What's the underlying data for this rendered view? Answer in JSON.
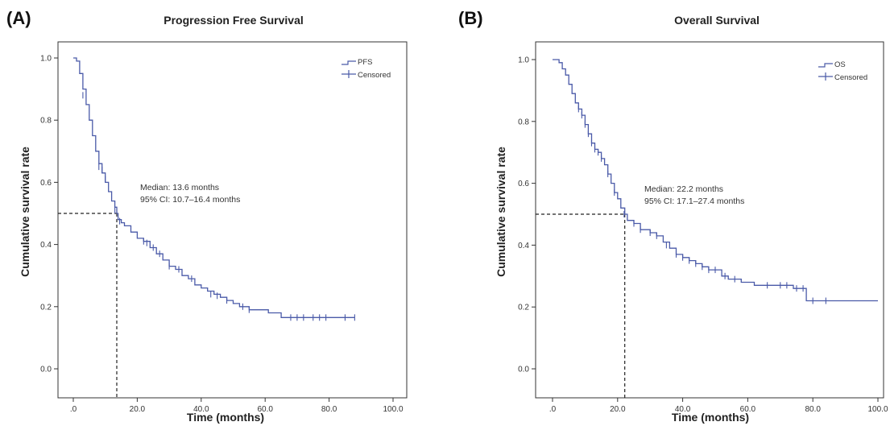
{
  "chart_data": [
    {
      "type": "line",
      "panel_label": "(A)",
      "title": "Progression Free Survival",
      "xlabel": "Time (months)",
      "ylabel": "Cumulative survival rate",
      "xlim": [
        0,
        100
      ],
      "ylim": [
        0,
        1
      ],
      "x_ticks": [
        ".0",
        "20.0",
        "40.0",
        "60.0",
        "80.0",
        "100.0"
      ],
      "y_ticks": [
        "0.0",
        "0.2",
        "0.4",
        "0.6",
        "0.8",
        "1.0"
      ],
      "grid": false,
      "legend_position": "top-right",
      "line_color": "#4a5aa8",
      "series": [
        {
          "name": "PFS",
          "x": [
            0,
            1,
            2,
            3,
            4,
            5,
            6,
            7,
            8,
            9,
            10,
            11,
            12,
            13,
            13.6,
            14,
            15,
            16,
            18,
            20,
            22,
            24,
            26,
            28,
            30,
            32,
            34,
            36,
            38,
            40,
            42,
            44,
            46,
            48,
            50,
            52,
            55,
            58,
            61,
            65,
            70,
            75,
            80,
            85,
            88
          ],
          "y": [
            1.0,
            0.99,
            0.95,
            0.9,
            0.85,
            0.8,
            0.75,
            0.7,
            0.66,
            0.63,
            0.6,
            0.57,
            0.54,
            0.52,
            0.5,
            0.48,
            0.47,
            0.46,
            0.44,
            0.42,
            0.41,
            0.39,
            0.37,
            0.35,
            0.33,
            0.32,
            0.3,
            0.29,
            0.27,
            0.26,
            0.25,
            0.24,
            0.23,
            0.22,
            0.21,
            0.2,
            0.19,
            0.19,
            0.18,
            0.165,
            0.165,
            0.165,
            0.165,
            0.165,
            0.165
          ]
        },
        {
          "name": "Censored",
          "x": [
            3,
            8,
            9,
            10,
            13,
            14.5,
            22,
            23,
            25,
            27,
            30,
            33,
            37,
            43,
            45,
            48,
            53,
            55,
            68,
            70,
            72,
            75,
            77,
            79,
            85,
            88
          ],
          "y": [
            0.88,
            0.65,
            0.64,
            0.61,
            0.51,
            0.475,
            0.41,
            0.405,
            0.39,
            0.37,
            0.33,
            0.32,
            0.29,
            0.24,
            0.235,
            0.22,
            0.2,
            0.19,
            0.165,
            0.165,
            0.165,
            0.165,
            0.165,
            0.165,
            0.165,
            0.165
          ]
        }
      ],
      "median": {
        "x": 13.6,
        "y": 0.5
      },
      "annotation": [
        "Median: 13.6 months",
        "95% CI: 10.7–16.4 months"
      ]
    },
    {
      "type": "line",
      "panel_label": "(B)",
      "title": "Overall Survival",
      "xlabel": "Time (months)",
      "ylabel": "Cumulative survival rate",
      "xlim": [
        0,
        100
      ],
      "ylim": [
        0,
        1
      ],
      "x_ticks": [
        ".0",
        "20.0",
        "40.0",
        "60.0",
        "80.0",
        "100.0"
      ],
      "y_ticks": [
        "0.0",
        "0.2",
        "0.4",
        "0.6",
        "0.8",
        "1.0"
      ],
      "grid": false,
      "legend_position": "top-right",
      "line_color": "#4a5aa8",
      "series": [
        {
          "name": "OS",
          "x": [
            0,
            1,
            2,
            3,
            4,
            5,
            6,
            7,
            8,
            9,
            10,
            11,
            12,
            13,
            14,
            15,
            16,
            17,
            18,
            19,
            20,
            21,
            22.2,
            23,
            25,
            27,
            30,
            32,
            34,
            36,
            38,
            40,
            42,
            44,
            46,
            48,
            50,
            52,
            54,
            58,
            62,
            66,
            70,
            74,
            77,
            78,
            80,
            85,
            90,
            100
          ],
          "y": [
            1.0,
            1.0,
            0.99,
            0.97,
            0.95,
            0.92,
            0.89,
            0.86,
            0.84,
            0.82,
            0.79,
            0.76,
            0.73,
            0.71,
            0.7,
            0.68,
            0.66,
            0.63,
            0.6,
            0.57,
            0.55,
            0.52,
            0.5,
            0.48,
            0.47,
            0.45,
            0.44,
            0.43,
            0.41,
            0.39,
            0.37,
            0.36,
            0.35,
            0.34,
            0.33,
            0.32,
            0.32,
            0.3,
            0.29,
            0.28,
            0.27,
            0.27,
            0.27,
            0.26,
            0.26,
            0.22,
            0.22,
            0.22,
            0.22,
            0.22
          ]
        },
        {
          "name": "Censored",
          "x": [
            8,
            9,
            10,
            11,
            12,
            13,
            14,
            15,
            17,
            19,
            22,
            25,
            27,
            30,
            32,
            35,
            38,
            40,
            42,
            44,
            46,
            48,
            50,
            53,
            56,
            66,
            70,
            72,
            75,
            77,
            80,
            84
          ],
          "y": [
            0.84,
            0.82,
            0.79,
            0.76,
            0.73,
            0.71,
            0.7,
            0.68,
            0.63,
            0.57,
            0.5,
            0.47,
            0.45,
            0.44,
            0.43,
            0.4,
            0.37,
            0.36,
            0.35,
            0.34,
            0.33,
            0.32,
            0.32,
            0.3,
            0.29,
            0.27,
            0.27,
            0.27,
            0.26,
            0.26,
            0.22,
            0.22
          ]
        }
      ],
      "median": {
        "x": 22.2,
        "y": 0.5
      },
      "annotation": [
        "Median: 22.2 months",
        "95% CI: 17.1–27.4 months"
      ]
    }
  ]
}
